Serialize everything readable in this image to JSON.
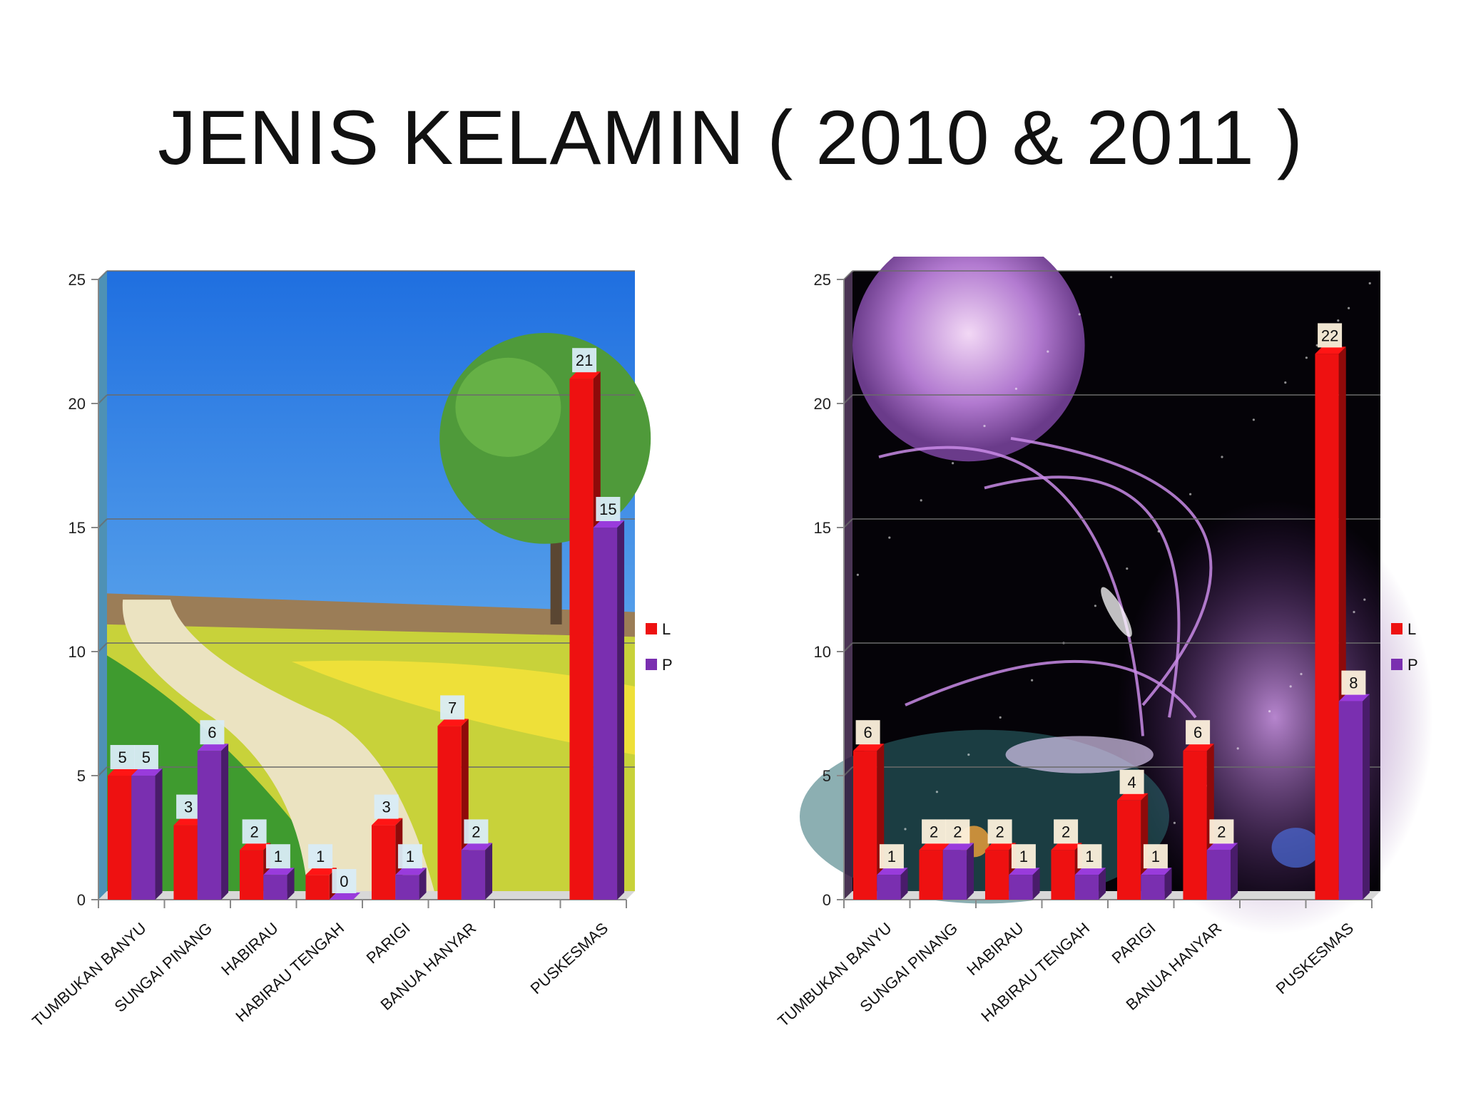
{
  "slide": {
    "title": "JENIS KELAMIN ( 2010 & 2011 )"
  },
  "colors": {
    "L": "#ee1111",
    "P": "#7a2fb0",
    "label_left": "#d9ecf7",
    "label_right": "#fdf1dc"
  },
  "chart_data": [
    {
      "type": "bar",
      "title": "",
      "background": "landscape",
      "categories": [
        "TUMBUKAN BANYU",
        "SUNGAI PINANG",
        "HABIRAU",
        "HABIRAU TENGAH",
        "PARIGI",
        "BANUA HANYAR",
        "",
        "PUSKESMAS"
      ],
      "series": [
        {
          "name": "L",
          "values": [
            5,
            3,
            2,
            1,
            3,
            7,
            null,
            21
          ]
        },
        {
          "name": "P",
          "values": [
            5,
            6,
            1,
            0,
            1,
            2,
            null,
            15
          ]
        }
      ],
      "ylim": [
        0,
        25
      ],
      "yticks": [
        "0",
        "5",
        "10",
        "15",
        "20",
        "25"
      ],
      "grid": true,
      "legend": "right"
    },
    {
      "type": "bar",
      "title": "",
      "background": "space",
      "categories": [
        "TUMBUKAN BANYU",
        "SUNGAI PINANG",
        "HABIRAU",
        "HABIRAU TENGAH",
        "PARIGI",
        "BANUA HANYAR",
        "",
        "PUSKESMAS"
      ],
      "series": [
        {
          "name": "L",
          "values": [
            6,
            2,
            2,
            2,
            4,
            6,
            null,
            22
          ]
        },
        {
          "name": "P",
          "values": [
            1,
            2,
            1,
            1,
            1,
            2,
            null,
            8
          ]
        }
      ],
      "ylim": [
        0,
        25
      ],
      "yticks": [
        "0",
        "5",
        "10",
        "15",
        "20",
        "25"
      ],
      "grid": true,
      "legend": "right"
    }
  ]
}
